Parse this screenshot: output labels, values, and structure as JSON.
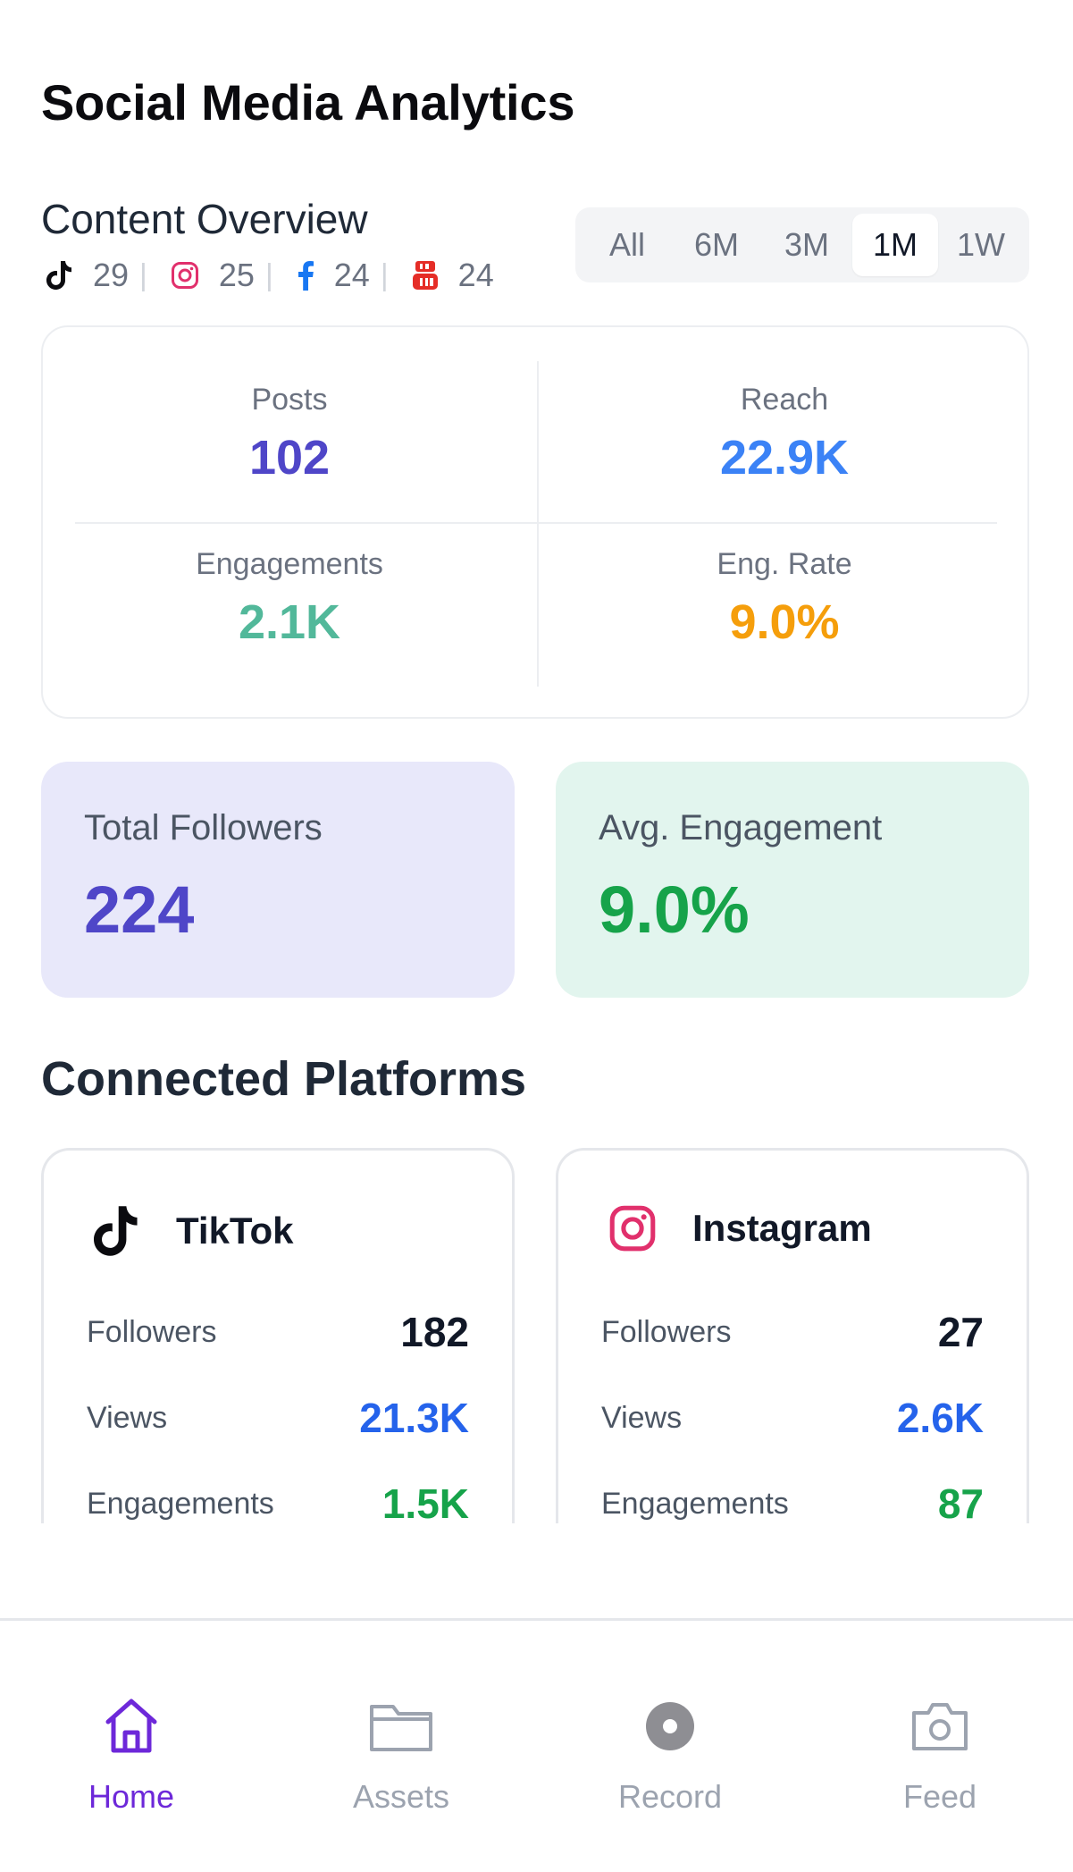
{
  "page_title": "Social Media Analytics",
  "overview": {
    "title": "Content Overview",
    "platform_counts": [
      {
        "icon": "tiktok-icon",
        "count": "29"
      },
      {
        "icon": "instagram-icon",
        "count": "25"
      },
      {
        "icon": "facebook-icon",
        "count": "24"
      },
      {
        "icon": "youtube-icon",
        "count": "24"
      }
    ],
    "separator": "|",
    "ranges": [
      "All",
      "6M",
      "3M",
      "1M",
      "1W"
    ],
    "active_range": "1M"
  },
  "stats": {
    "posts": {
      "label": "Posts",
      "value": "102"
    },
    "reach": {
      "label": "Reach",
      "value": "22.9K"
    },
    "engagements": {
      "label": "Engagements",
      "value": "2.1K"
    },
    "eng_rate": {
      "label": "Eng. Rate",
      "value": "9.0%"
    }
  },
  "summary": {
    "followers": {
      "label": "Total Followers",
      "value": "224"
    },
    "avg_engagement": {
      "label": "Avg. Engagement",
      "value": "9.0%"
    }
  },
  "connected": {
    "title": "Connected Platforms",
    "platforms": [
      {
        "name": "TikTok",
        "icon": "tiktok-icon",
        "followers_label": "Followers",
        "followers": "182",
        "views_label": "Views",
        "views": "21.3K",
        "engagements_label": "Engagements",
        "engagements": "1.5K"
      },
      {
        "name": "Instagram",
        "icon": "instagram-icon",
        "followers_label": "Followers",
        "followers": "27",
        "views_label": "Views",
        "views": "2.6K",
        "engagements_label": "Engagements",
        "engagements": "87"
      }
    ]
  },
  "nav": {
    "items": [
      {
        "label": "Home",
        "icon": "home-icon"
      },
      {
        "label": "Assets",
        "icon": "folder-icon"
      },
      {
        "label": "Record",
        "icon": "record-icon"
      },
      {
        "label": "Feed",
        "icon": "camera-icon"
      }
    ],
    "active": "Home"
  },
  "colors": {
    "posts": "#4f46c8",
    "reach": "#3b82f6",
    "engagements": "#52b89a",
    "eng_rate": "#f59e0b",
    "followers_card_bg": "#e8e8fa",
    "engagement_card_bg": "#e2f5ee",
    "followers_value": "#4f46c8",
    "engagement_value": "#16a34a",
    "views_value": "#2563eb",
    "engagements_value": "#16a34a",
    "nav_active": "#6d28d9",
    "nav_inactive": "#9ca3af"
  }
}
